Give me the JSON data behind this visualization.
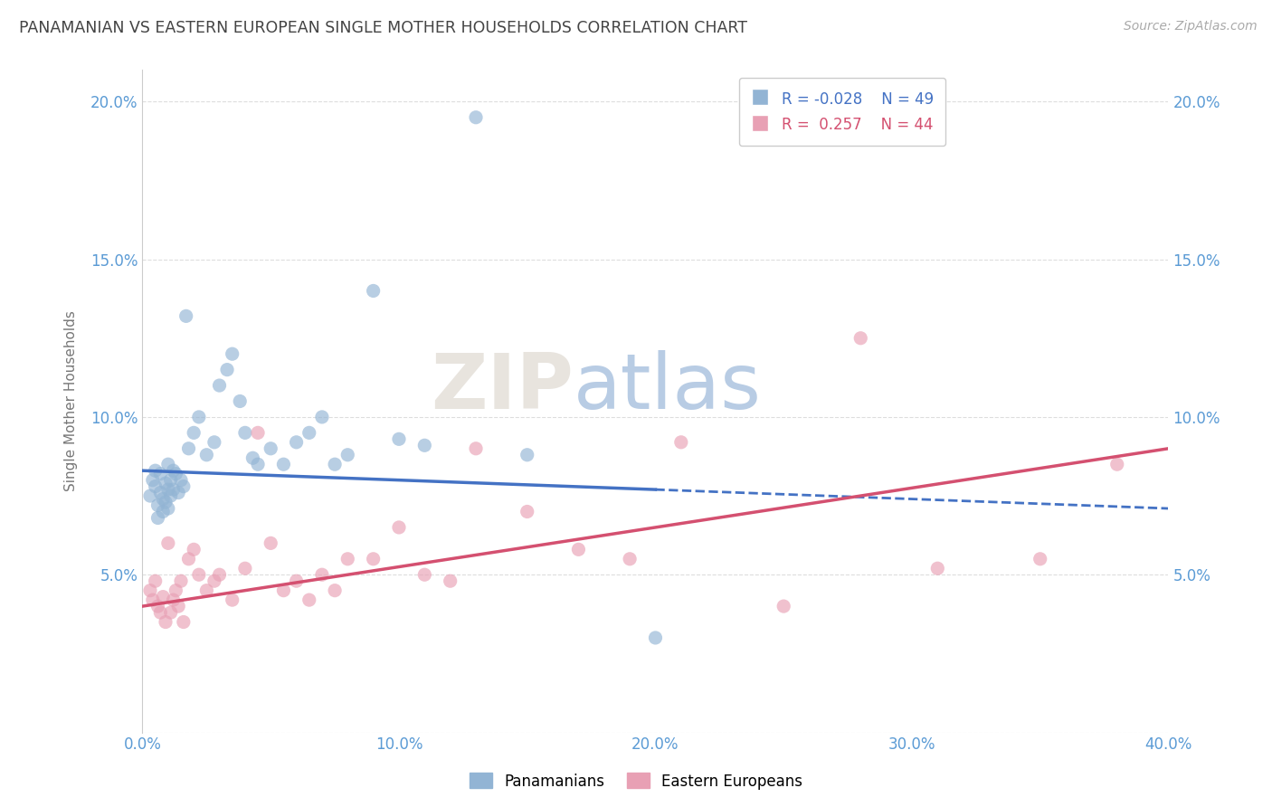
{
  "title": "PANAMANIAN VS EASTERN EUROPEAN SINGLE MOTHER HOUSEHOLDS CORRELATION CHART",
  "source": "Source: ZipAtlas.com",
  "xlabel_note": "Panamanians",
  "xlabel_note2": "Eastern Europeans",
  "ylabel": "Single Mother Households",
  "xlim": [
    0.0,
    0.4
  ],
  "ylim": [
    0.0,
    0.21
  ],
  "xticks": [
    0.0,
    0.1,
    0.2,
    0.3,
    0.4
  ],
  "xtick_labels": [
    "0.0%",
    "10.0%",
    "20.0%",
    "30.0%",
    "40.0%"
  ],
  "yticks": [
    0.0,
    0.05,
    0.1,
    0.15,
    0.2
  ],
  "ytick_labels": [
    "",
    "5.0%",
    "10.0%",
    "15.0%",
    "20.0%"
  ],
  "right_ytick_labels": [
    "",
    "5.0%",
    "10.0%",
    "15.0%",
    "20.0%"
  ],
  "legend_blue_r": "-0.028",
  "legend_blue_n": "49",
  "legend_pink_r": "0.257",
  "legend_pink_n": "44",
  "blue_color": "#92b4d4",
  "pink_color": "#e8a0b4",
  "blue_line_color": "#4472c4",
  "pink_line_color": "#d45070",
  "watermark_zip": "ZIP",
  "watermark_atlas": "atlas",
  "background_color": "#ffffff",
  "grid_color": "#dddddd",
  "blue_scatter_x": [
    0.003,
    0.004,
    0.005,
    0.005,
    0.006,
    0.006,
    0.007,
    0.007,
    0.008,
    0.008,
    0.009,
    0.009,
    0.01,
    0.01,
    0.01,
    0.011,
    0.011,
    0.012,
    0.012,
    0.013,
    0.014,
    0.015,
    0.016,
    0.017,
    0.018,
    0.02,
    0.022,
    0.025,
    0.028,
    0.03,
    0.033,
    0.035,
    0.038,
    0.04,
    0.043,
    0.045,
    0.05,
    0.055,
    0.06,
    0.065,
    0.07,
    0.075,
    0.08,
    0.09,
    0.1,
    0.11,
    0.13,
    0.15,
    0.2
  ],
  "blue_scatter_y": [
    0.075,
    0.08,
    0.078,
    0.083,
    0.072,
    0.068,
    0.076,
    0.082,
    0.07,
    0.074,
    0.079,
    0.073,
    0.085,
    0.077,
    0.071,
    0.08,
    0.075,
    0.083,
    0.077,
    0.082,
    0.076,
    0.08,
    0.078,
    0.132,
    0.09,
    0.095,
    0.1,
    0.088,
    0.092,
    0.11,
    0.115,
    0.12,
    0.105,
    0.095,
    0.087,
    0.085,
    0.09,
    0.085,
    0.092,
    0.095,
    0.1,
    0.085,
    0.088,
    0.14,
    0.093,
    0.091,
    0.195,
    0.088,
    0.03
  ],
  "pink_scatter_x": [
    0.003,
    0.004,
    0.005,
    0.006,
    0.007,
    0.008,
    0.009,
    0.01,
    0.011,
    0.012,
    0.013,
    0.014,
    0.015,
    0.016,
    0.018,
    0.02,
    0.022,
    0.025,
    0.028,
    0.03,
    0.035,
    0.04,
    0.045,
    0.05,
    0.055,
    0.06,
    0.065,
    0.07,
    0.075,
    0.08,
    0.09,
    0.1,
    0.11,
    0.12,
    0.13,
    0.15,
    0.17,
    0.19,
    0.21,
    0.25,
    0.28,
    0.31,
    0.35,
    0.38
  ],
  "pink_scatter_y": [
    0.045,
    0.042,
    0.048,
    0.04,
    0.038,
    0.043,
    0.035,
    0.06,
    0.038,
    0.042,
    0.045,
    0.04,
    0.048,
    0.035,
    0.055,
    0.058,
    0.05,
    0.045,
    0.048,
    0.05,
    0.042,
    0.052,
    0.095,
    0.06,
    0.045,
    0.048,
    0.042,
    0.05,
    0.045,
    0.055,
    0.055,
    0.065,
    0.05,
    0.048,
    0.09,
    0.07,
    0.058,
    0.055,
    0.092,
    0.04,
    0.125,
    0.052,
    0.055,
    0.085
  ],
  "blue_line_solid_end": 0.2,
  "blue_line_x_start": 0.0,
  "blue_line_x_end": 0.4,
  "blue_line_y_start": 0.083,
  "blue_line_y_end": 0.071,
  "pink_line_x_start": 0.0,
  "pink_line_x_end": 0.4,
  "pink_line_y_start": 0.04,
  "pink_line_y_end": 0.09
}
